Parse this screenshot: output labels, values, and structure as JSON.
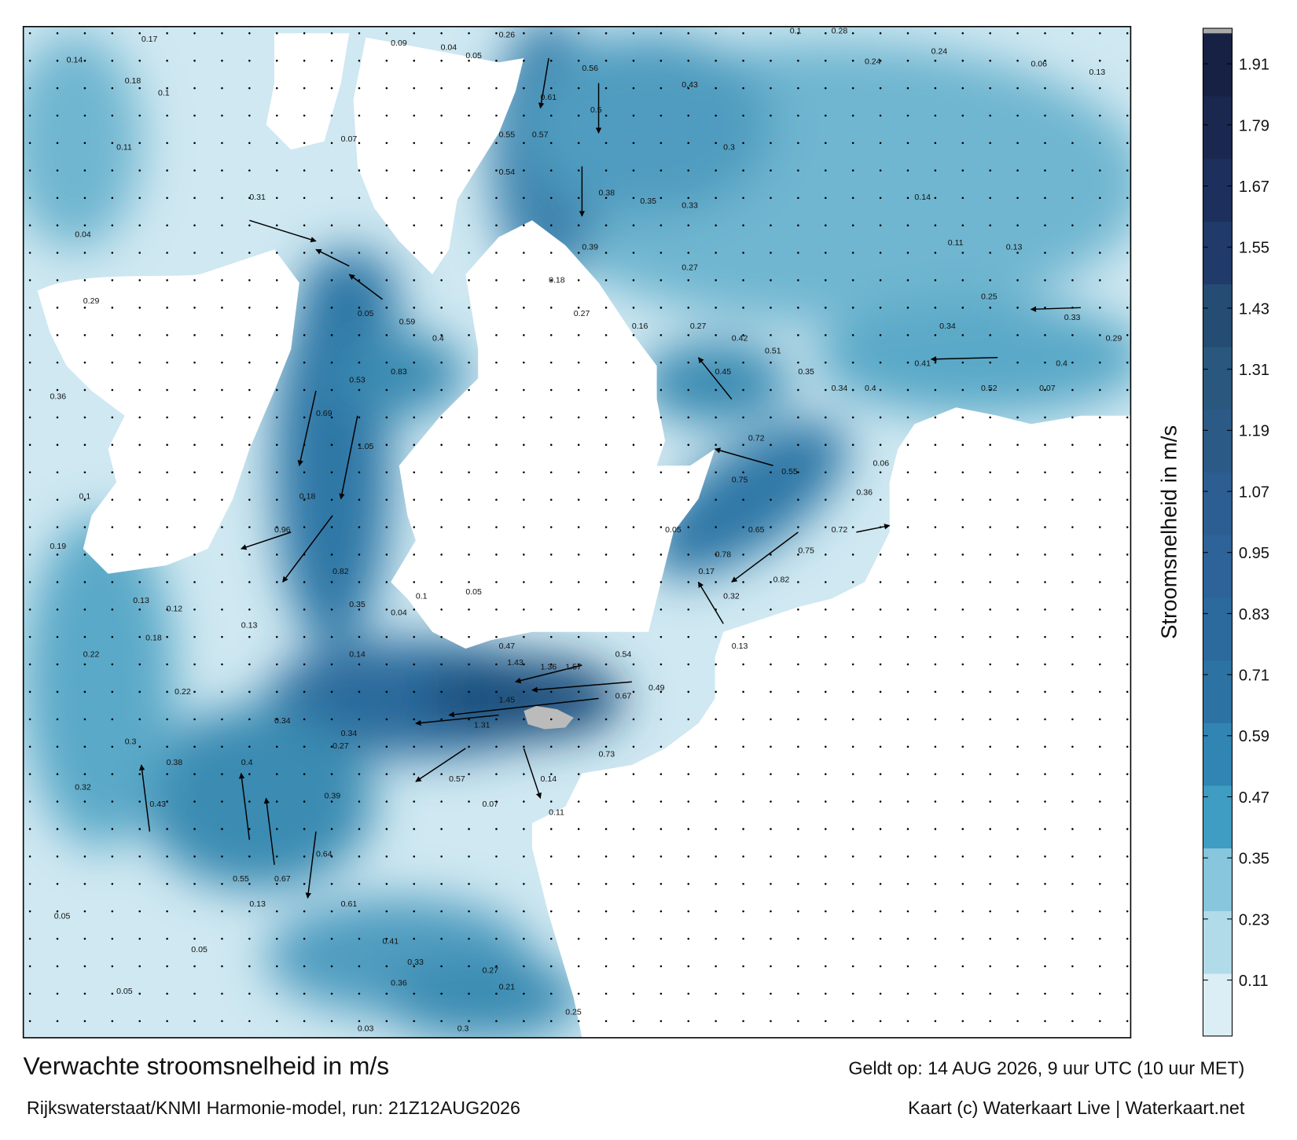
{
  "footer": {
    "title": "Verwachte stroomsnelheid in m/s",
    "model": "Rijkswaterstaat/KNMI Harmonie-model, run: 21Z12AUG2026",
    "valid": "Geldt op: 14 AUG 2026, 9 uur UTC (10 uur MET)",
    "credit": "Kaart (c) Waterkaart Live | Waterkaart.net"
  },
  "colorbar": {
    "label": "Stroomsnelheid in m/s",
    "range": [
      0,
      1.97
    ],
    "ticks": [
      0.11,
      0.23,
      0.35,
      0.47,
      0.59,
      0.71,
      0.83,
      0.95,
      1.07,
      1.19,
      1.31,
      1.43,
      1.55,
      1.67,
      1.79,
      1.91
    ]
  },
  "map": {
    "speed_labels": [
      0.17,
      0.14,
      0.18,
      0.1,
      0.11,
      0.31,
      0.04,
      0.29,
      0.36,
      0.1,
      0.19,
      0.13,
      0.12,
      0.13,
      0.18,
      0.22,
      0.22,
      0.3,
      0.38,
      0.32,
      0.43,
      0.13,
      0.05,
      0.05,
      0.05,
      0.03,
      0.3,
      0.25,
      0.21,
      0.36,
      0.34,
      0.34,
      0.4,
      0.47,
      1.43,
      1.36,
      1.57,
      1.45,
      1.31,
      0.73,
      0.49,
      0.54,
      0.67,
      0.13,
      0.78,
      0.82,
      0.75,
      0.72,
      0.36,
      0.34,
      0.4,
      0.52,
      0.07,
      0.41,
      0.34,
      0.25,
      0.33,
      0.29,
      0.13,
      0.06,
      0.24,
      0.24,
      0.28,
      0.1,
      0.3,
      0.43,
      0.5,
      0.61,
      0.56,
      0.33,
      0.35,
      0.38,
      0.27,
      0.16,
      0.27,
      0.42,
      0.51,
      0.45,
      0.35,
      0.72,
      0.75,
      0.55,
      0.65,
      0.14,
      0.11,
      0.13,
      0.4,
      0.06,
      0.05,
      0.17,
      0.32,
      0.07,
      0.09,
      0.04,
      0.05,
      0.26,
      0.55,
      0.57,
      0.54,
      0.39,
      0.18,
      0.27,
      0.05,
      0.59,
      0.4,
      0.83,
      0.53,
      0.69,
      1.05,
      0.18,
      0.96,
      0.82,
      0.35,
      0.04,
      0.1,
      0.05,
      0.14,
      0.27,
      0.39,
      0.64,
      0.67,
      0.55,
      0.61,
      0.41,
      0.33,
      0.27,
      0.57,
      0.07,
      0.14,
      0.11
    ]
  }
}
